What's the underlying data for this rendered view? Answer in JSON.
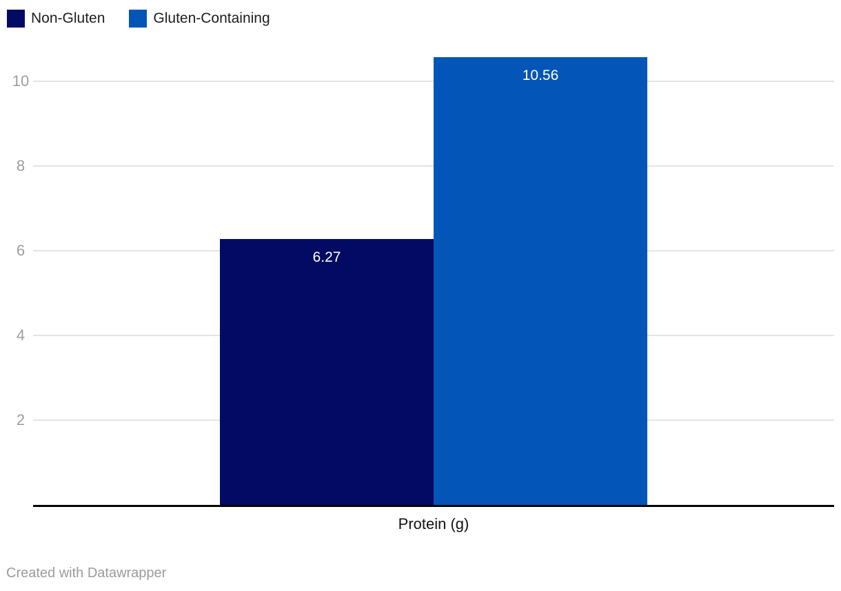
{
  "chart_data": {
    "type": "bar",
    "title": "",
    "categories": [
      "Protein (g)"
    ],
    "series": [
      {
        "name": "Non-Gluten",
        "values": [
          6.27
        ],
        "value_labels": [
          "6.27"
        ],
        "color": "#020a64"
      },
      {
        "name": "Gluten-Containing",
        "values": [
          10.56
        ],
        "value_labels": [
          "10.56"
        ],
        "color": "#0455b8"
      }
    ],
    "xlabel": "Protein (g)",
    "ylabel": "",
    "ylim": [
      0,
      10.56
    ],
    "yticks": [
      2,
      4,
      6,
      8,
      10
    ],
    "grid": true,
    "legend_position": "top-left",
    "value_labels_inside_bars": true
  },
  "legend": {
    "items": [
      {
        "label": "Non-Gluten",
        "color": "#020a64"
      },
      {
        "label": "Gluten-Containing",
        "color": "#0455b8"
      }
    ]
  },
  "axis": {
    "x_label": "Protein (g)",
    "y_tick_labels": [
      "2",
      "4",
      "6",
      "8",
      "10"
    ]
  },
  "footer": {
    "credit": "Created with Datawrapper"
  },
  "colors": {
    "bar_non_gluten": "#020a64",
    "bar_gluten_containing": "#0455b8",
    "gridline": "#e4e4e4",
    "axis_line": "#000000",
    "tick_label": "#9e9e9e",
    "value_label": "#ffffff",
    "legend_text": "#1d1d1d",
    "x_label_text": "#121212",
    "footer_text": "#9b9b9b",
    "background": "#ffffff"
  }
}
